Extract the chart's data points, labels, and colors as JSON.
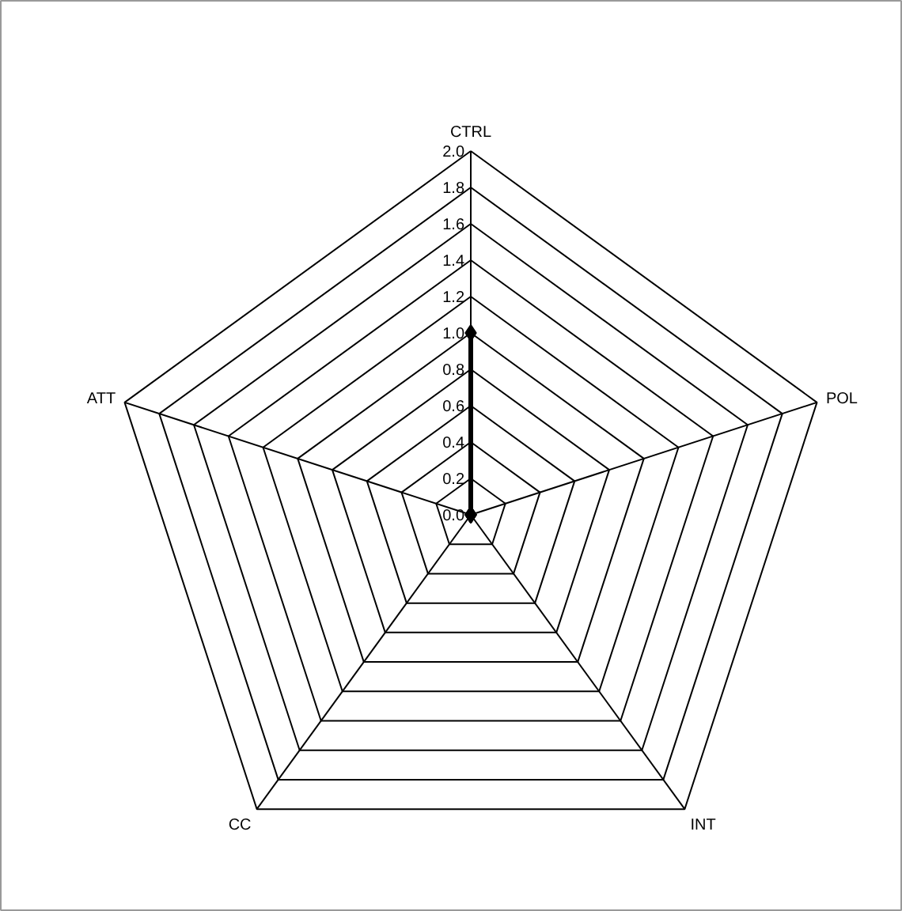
{
  "chart_data": {
    "type": "radar",
    "categories": [
      "CTRL",
      "POL",
      "INT",
      "CC",
      "ATT"
    ],
    "ylim": [
      0,
      2.0
    ],
    "yticks": [
      {
        "value": 0,
        "label": "0.0"
      },
      {
        "value": 0.2,
        "label": "0.2"
      },
      {
        "value": 0.4,
        "label": "0.4"
      },
      {
        "value": 0.6,
        "label": "0.6"
      },
      {
        "value": 0.8,
        "label": "0.8"
      },
      {
        "value": 1.0,
        "label": "1.0"
      },
      {
        "value": 1.2,
        "label": "1.2"
      },
      {
        "value": 1.4,
        "label": "1.4"
      },
      {
        "value": 1.6,
        "label": "1.6"
      },
      {
        "value": 1.8,
        "label": "1.8"
      },
      {
        "value": 2.0,
        "label": "2.0"
      }
    ],
    "series": [
      {
        "color": "#000000",
        "values": [
          1.0,
          0,
          0,
          0,
          0
        ]
      }
    ],
    "marker": "diamond",
    "line_style": "solid",
    "grid": true
  }
}
